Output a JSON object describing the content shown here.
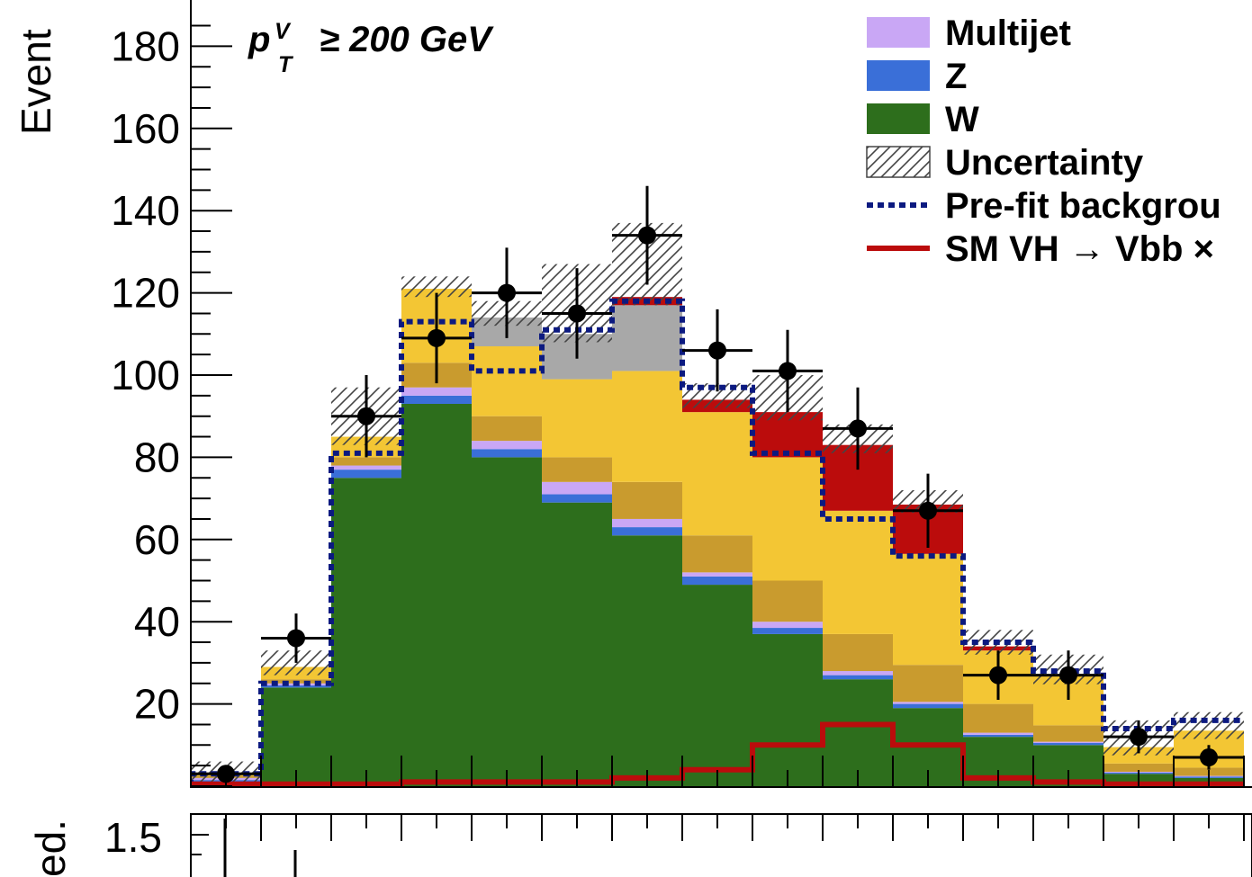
{
  "chart_data": {
    "type": "bar",
    "stacked": true,
    "ylabel": "Event",
    "ratio_ylabel": "ed.",
    "ylim": [
      0,
      190
    ],
    "ratio_ylim_top": 1.5,
    "ratio_tick_label": "1.5",
    "yticks": [
      20,
      40,
      60,
      80,
      100,
      120,
      140,
      160,
      180
    ],
    "cut_label": {
      "prefix": "p",
      "sup": "V",
      "sub": "T",
      "rest": "≥ 200 GeV"
    },
    "bins": 15,
    "series": [
      {
        "name": "W",
        "color": "#2d6e1c",
        "values": [
          1,
          24,
          75,
          93,
          80,
          69,
          61,
          49,
          37,
          26,
          19,
          12,
          10,
          3,
          2
        ]
      },
      {
        "name": "Z",
        "color": "#3a6fd8",
        "values": [
          0.5,
          0.5,
          2,
          2,
          2,
          2,
          2,
          2,
          1.5,
          1,
          1,
          0.5,
          0.5,
          0.3,
          0.3
        ]
      },
      {
        "name": "Multijet",
        "color": "#c9a7f5",
        "values": [
          0.5,
          0.5,
          1,
          2,
          2,
          3,
          2,
          1,
          1.5,
          1,
          0.5,
          0.5,
          0.3,
          0.2,
          0.2
        ]
      },
      {
        "name": "",
        "color": "#c99b2e",
        "values": [
          0.5,
          1,
          2,
          6,
          6,
          6,
          9,
          9,
          10,
          9,
          9,
          7,
          4,
          2,
          2
        ]
      },
      {
        "name": "",
        "color": "#f3c634",
        "values": [
          0.5,
          3,
          5,
          18,
          17,
          19,
          27,
          30,
          30,
          30,
          27,
          13,
          12,
          4,
          9
        ]
      },
      {
        "name": "",
        "color": "#a8a8a8",
        "values": [
          0,
          0,
          0,
          0,
          7,
          11,
          16,
          0,
          0,
          0,
          0,
          0,
          0,
          0,
          0
        ]
      },
      {
        "name": "",
        "color": "#bb0c0c",
        "values": [
          0,
          0,
          0,
          0,
          0,
          0,
          2,
          3,
          11,
          16,
          12,
          1,
          0,
          0,
          0
        ]
      }
    ],
    "uncertainty_top": [
      4,
      31,
      95,
      122,
      116,
      125,
      135,
      96,
      98,
      86,
      70,
      36,
      30,
      14,
      16
    ],
    "prefit_background": [
      3,
      25,
      81,
      113,
      101,
      111,
      118,
      97,
      81,
      65,
      56,
      35,
      28,
      14,
      16
    ],
    "signal": [
      0.5,
      0.5,
      0.5,
      1,
      1,
      1,
      2,
      4,
      10,
      15,
      10,
      2,
      1,
      0.5,
      0.5
    ],
    "data_points": {
      "values": [
        3,
        36,
        90,
        109,
        120,
        115,
        134,
        106,
        101,
        87,
        67,
        27,
        27,
        12,
        7
      ],
      "errors": [
        2,
        6,
        10,
        11,
        11,
        11,
        12,
        10,
        10,
        10,
        9,
        6,
        6,
        4,
        3
      ]
    },
    "legend": {
      "position": "top-right",
      "entries": [
        {
          "label": "Multijet",
          "style": "fill",
          "color": "#c9a7f5"
        },
        {
          "label": "Z",
          "style": "fill",
          "color": "#3a6fd8"
        },
        {
          "label": "W",
          "style": "fill",
          "color": "#2d6e1c"
        },
        {
          "label": "Uncertainty",
          "style": "hatch",
          "color": "#555555"
        },
        {
          "label": "Pre-fit backgrou",
          "style": "dotted",
          "color": "#0c1a80"
        },
        {
          "label": "SM VH → Vbb ×",
          "style": "line",
          "color": "#bb0c0c"
        }
      ]
    }
  }
}
